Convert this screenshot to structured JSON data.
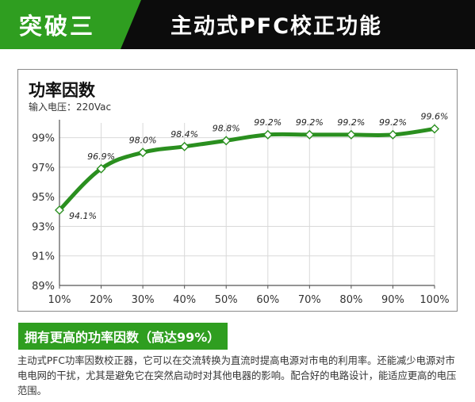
{
  "header": {
    "tag": "突破三",
    "title": "主动式PFC校正功能"
  },
  "colors": {
    "header_bg": "#0c0c0c",
    "accent_green": "#2f9e20",
    "line_green": "#2a8f1f",
    "grid": "#d9d9d9"
  },
  "chart_data": {
    "type": "line",
    "title": "功率因数",
    "subtitle": "输入电压：220Vac",
    "categories": [
      "10%",
      "20%",
      "30%",
      "40%",
      "50%",
      "60%",
      "70%",
      "80%",
      "90%",
      "100%"
    ],
    "series": [
      {
        "values": [
          94.1,
          96.9,
          98.0,
          98.4,
          98.8,
          99.2,
          99.2,
          99.2,
          99.2,
          99.6
        ]
      }
    ],
    "data_labels": [
      "94.1%",
      "96.9%",
      "98.0%",
      "98.4%",
      "98.8%",
      "99.2%",
      "99.2%",
      "99.2%",
      "99.2%",
      "99.6%"
    ],
    "y_ticks": [
      89,
      91,
      93,
      95,
      97,
      99
    ],
    "y_tick_labels": [
      "89%",
      "91%",
      "93%",
      "95%",
      "97%",
      "99%"
    ],
    "ylim": [
      89,
      100
    ],
    "grid": true,
    "marker": "diamond",
    "smooth": true
  },
  "caption": "拥有更高的功率因数（高达99%）",
  "description": "主动式PFC功率因数校正器，它可以在交流转换为直流时提高电源对市电的利用率。还能减少电源对市电电网的干扰，尤其是避免它在突然启动时对其他电器的影响。配合好的电路设计，能适应更高的电压范围。"
}
